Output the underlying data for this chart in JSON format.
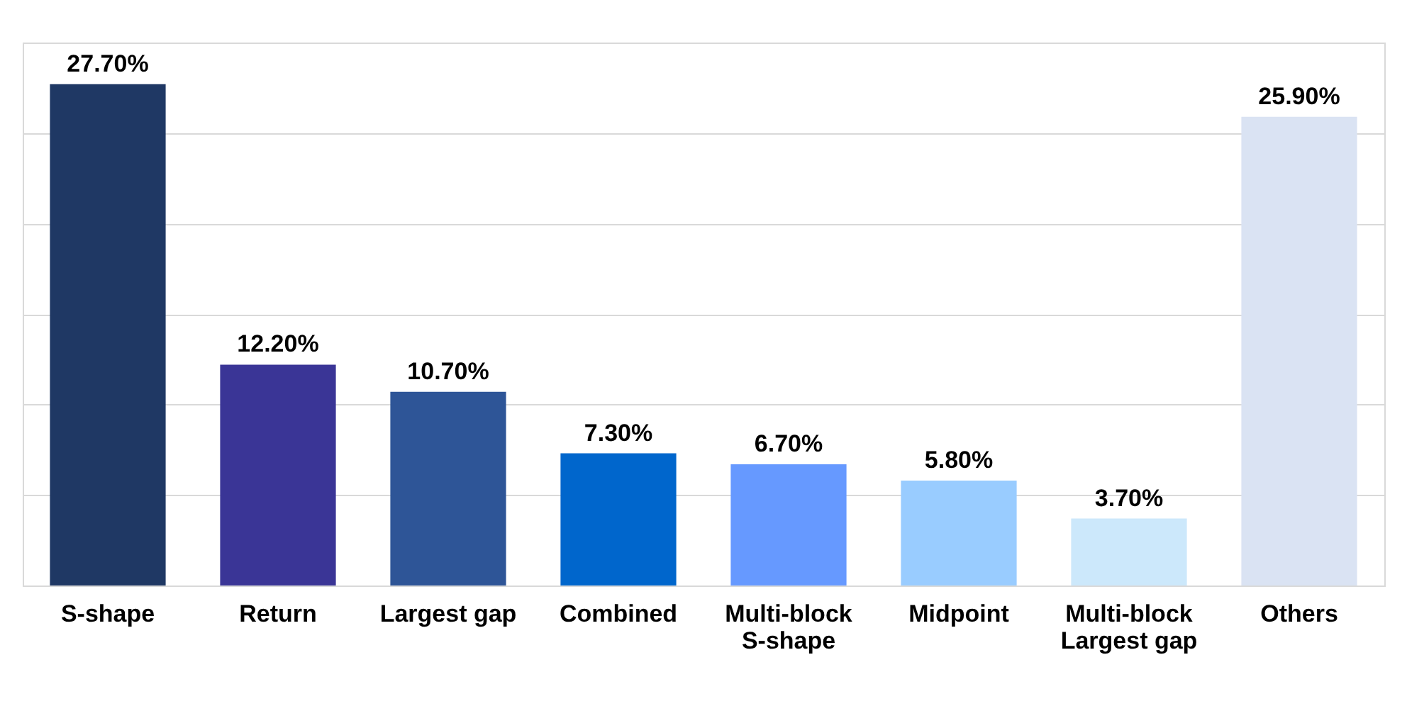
{
  "chart_data": {
    "type": "bar",
    "categories": [
      "S-shape",
      "Return",
      "Largest gap",
      "Combined",
      "Multi-block\nS-shape",
      "Midpoint",
      "Multi-block\nLargest gap",
      "Others"
    ],
    "values": [
      27.7,
      12.2,
      10.7,
      7.3,
      6.7,
      5.8,
      3.7,
      25.9
    ],
    "colors": [
      "#1f3864",
      "#3a3596",
      "#2e5597",
      "#0066cc",
      "#6699ff",
      "#99ccff",
      "#cce8fb",
      "#dae3f3"
    ],
    "value_labels": [
      "27.70%",
      "12.20%",
      "10.70%",
      "7.30%",
      "6.70%",
      "5.80%",
      "3.70%",
      "25.90%"
    ],
    "ylim": [
      0,
      30
    ],
    "yticks": [
      {
        "value": 0,
        "label": null
      },
      {
        "value": 5,
        "label": null
      },
      {
        "value": 10,
        "label": null
      },
      {
        "value": 15,
        "label": null
      },
      {
        "value": 20,
        "label": null
      },
      {
        "value": 25,
        "label": null
      }
    ],
    "grid": "y",
    "tick_labels": "x"
  }
}
